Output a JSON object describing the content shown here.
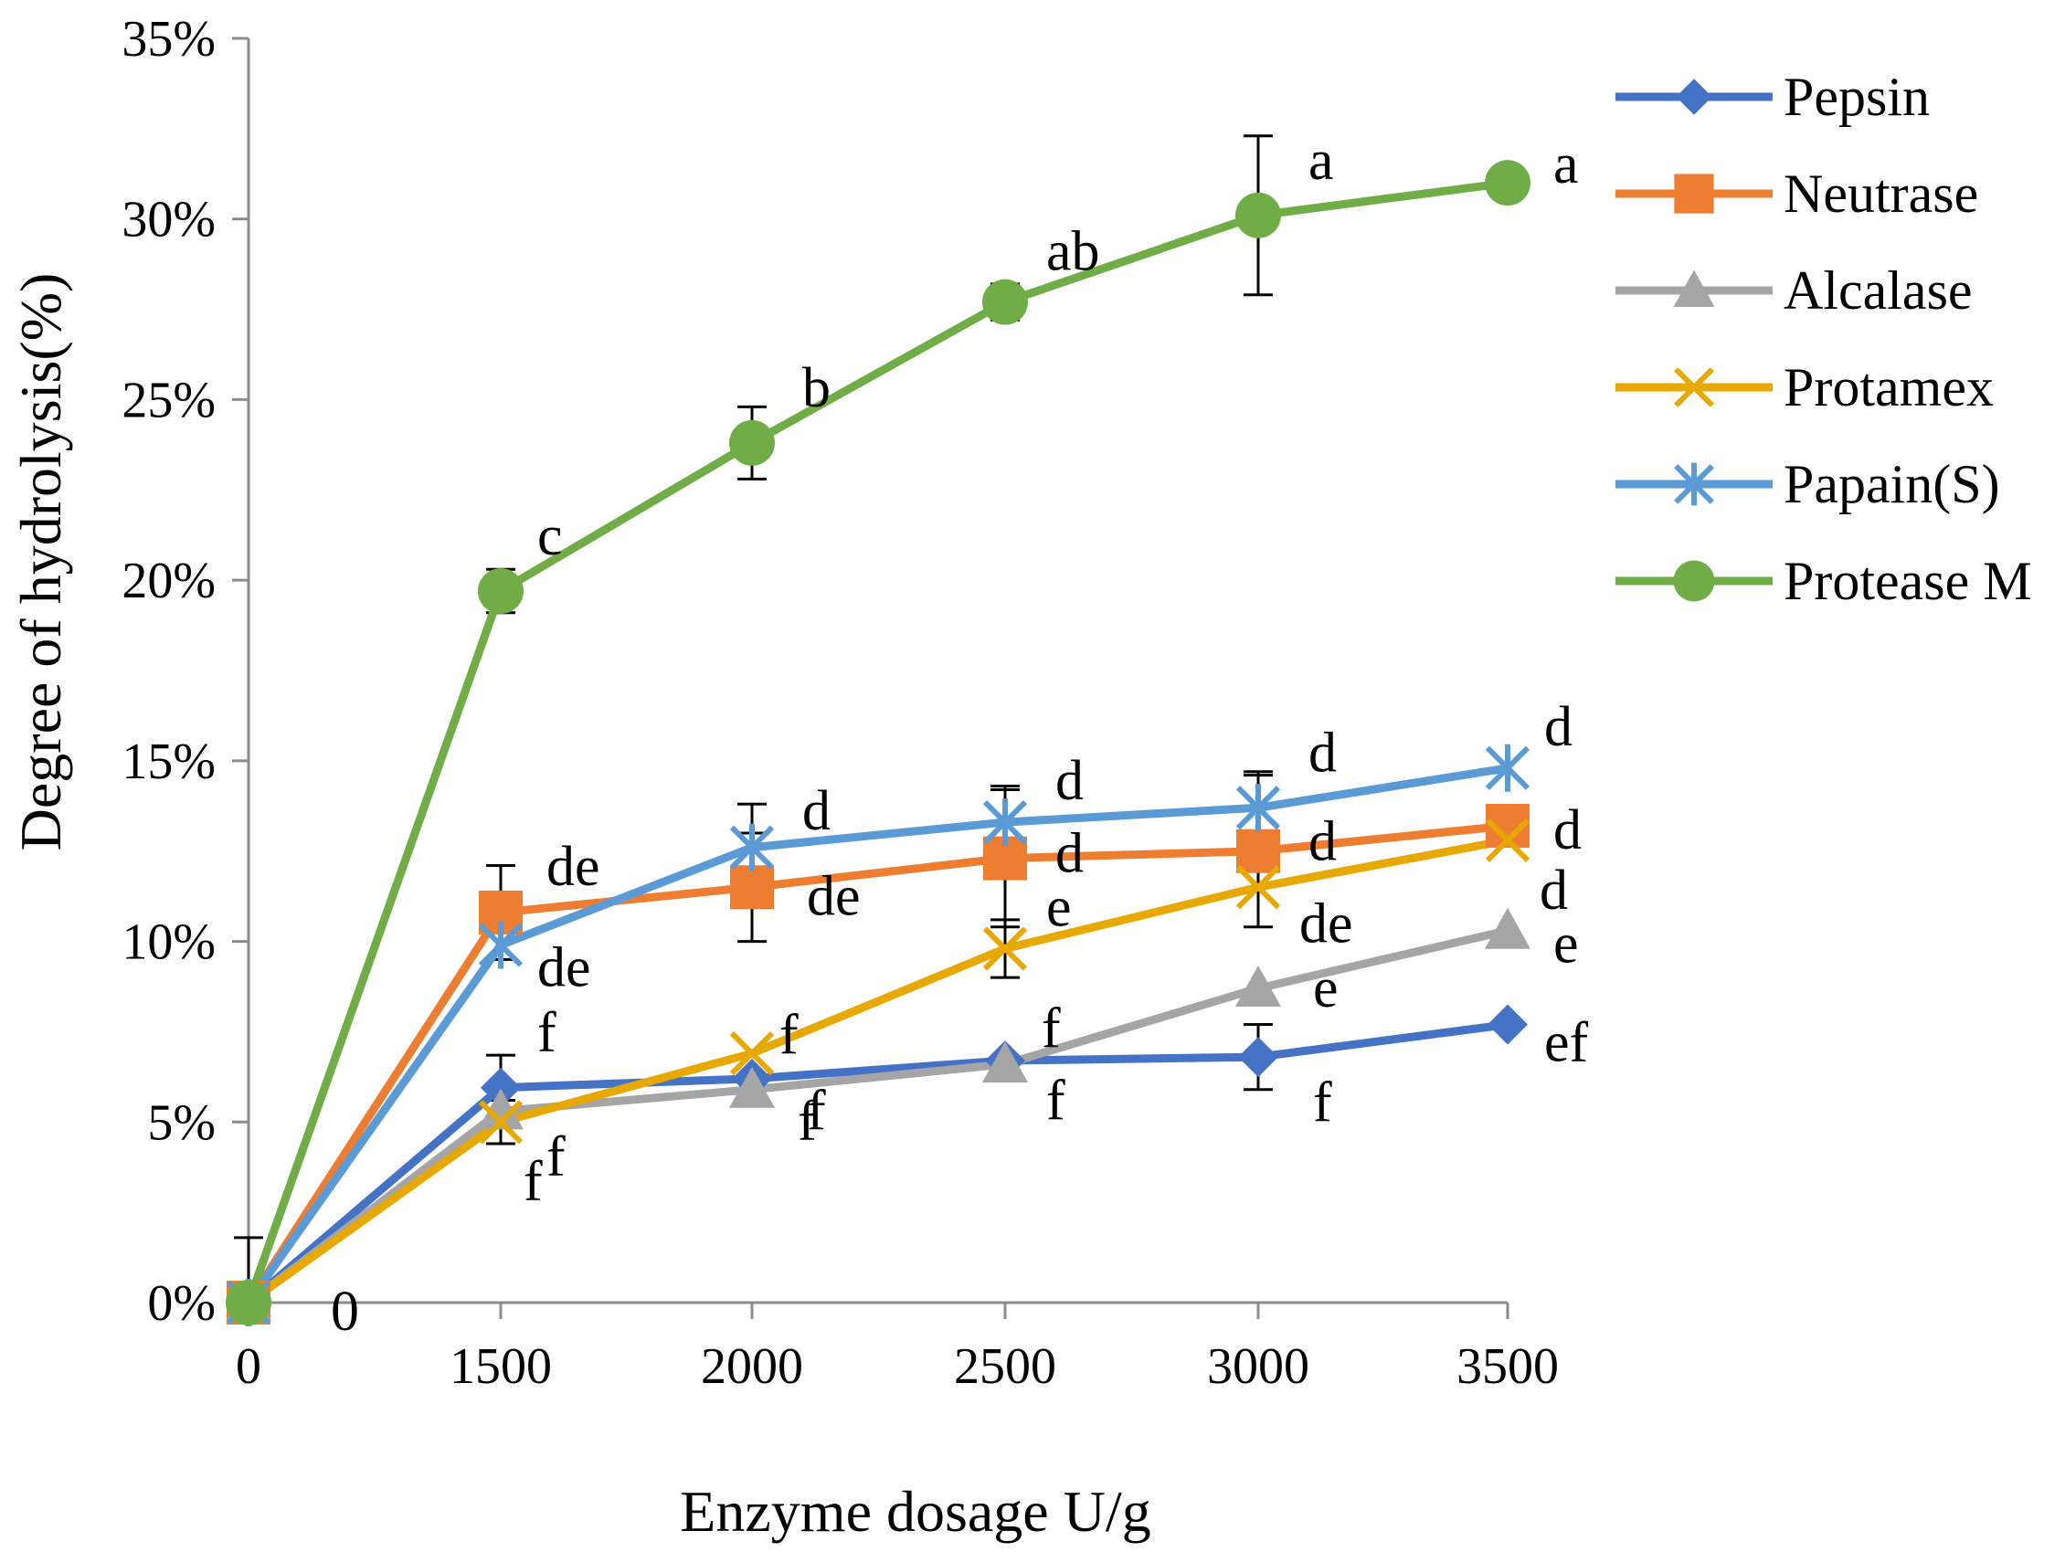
{
  "chart_data": {
    "type": "line",
    "title": "",
    "xlabel": "Enzyme dosage U/g",
    "ylabel": "Degree of hydrolysis(%)",
    "categories": [
      "0",
      "1500",
      "2000",
      "2500",
      "3000",
      "3500"
    ],
    "ylim": [
      0,
      35
    ],
    "yticks": [
      "0%",
      "5%",
      "10%",
      "15%",
      "20%",
      "25%",
      "30%",
      "35%"
    ],
    "legend_position": "right",
    "series": [
      {
        "name": "Pepsin",
        "color": "#4472C4",
        "marker": "diamond",
        "values": [
          0,
          5.95,
          6.2,
          6.7,
          6.8,
          7.7
        ],
        "errors": [
          0,
          0.9,
          0,
          0,
          0.9,
          0
        ],
        "labels": [
          "",
          "f",
          "f",
          "f",
          "f",
          "ef"
        ]
      },
      {
        "name": "Neutrase",
        "color": "#ED7D31",
        "marker": "square",
        "values": [
          0,
          10.8,
          11.5,
          12.3,
          12.5,
          13.2
        ],
        "errors": [
          0,
          1.3,
          1.5,
          1.9,
          2.1,
          0
        ],
        "labels": [
          "",
          "de",
          "de",
          "d",
          "d",
          "d"
        ]
      },
      {
        "name": "Alcalase",
        "color": "#A5A5A5",
        "marker": "triangle",
        "values": [
          0,
          5.3,
          5.9,
          6.6,
          8.7,
          10.3
        ],
        "errors": [
          0,
          0,
          0,
          0,
          0,
          0
        ],
        "labels": [
          "",
          "f",
          "f",
          "f",
          "e",
          "e"
        ]
      },
      {
        "name": "Protamex",
        "color": "#E7A800",
        "marker": "x",
        "values": [
          0,
          5.0,
          6.9,
          9.8,
          11.5,
          12.8
        ],
        "errors": [
          0,
          0.6,
          0,
          0.8,
          0,
          0
        ],
        "labels": [
          "",
          "f",
          "f",
          "e",
          "de",
          "d"
        ]
      },
      {
        "name": "Papain(S)",
        "color": "#5B9BD5",
        "marker": "asterisk",
        "values": [
          0,
          9.9,
          12.6,
          13.3,
          13.7,
          14.8
        ],
        "errors": [
          0,
          0,
          1.2,
          1.0,
          1.0,
          0
        ],
        "labels": [
          "",
          "de",
          "d",
          "d",
          "d",
          "d"
        ]
      },
      {
        "name": "Protease M",
        "color": "#70AD47",
        "marker": "circle",
        "values": [
          0,
          19.7,
          23.8,
          27.7,
          30.1,
          31.0
        ],
        "errors": [
          1.8,
          0.6,
          1.0,
          0.5,
          2.2,
          0
        ],
        "labels": [
          "0",
          "c",
          "b",
          "ab",
          "a",
          "a"
        ]
      }
    ]
  }
}
